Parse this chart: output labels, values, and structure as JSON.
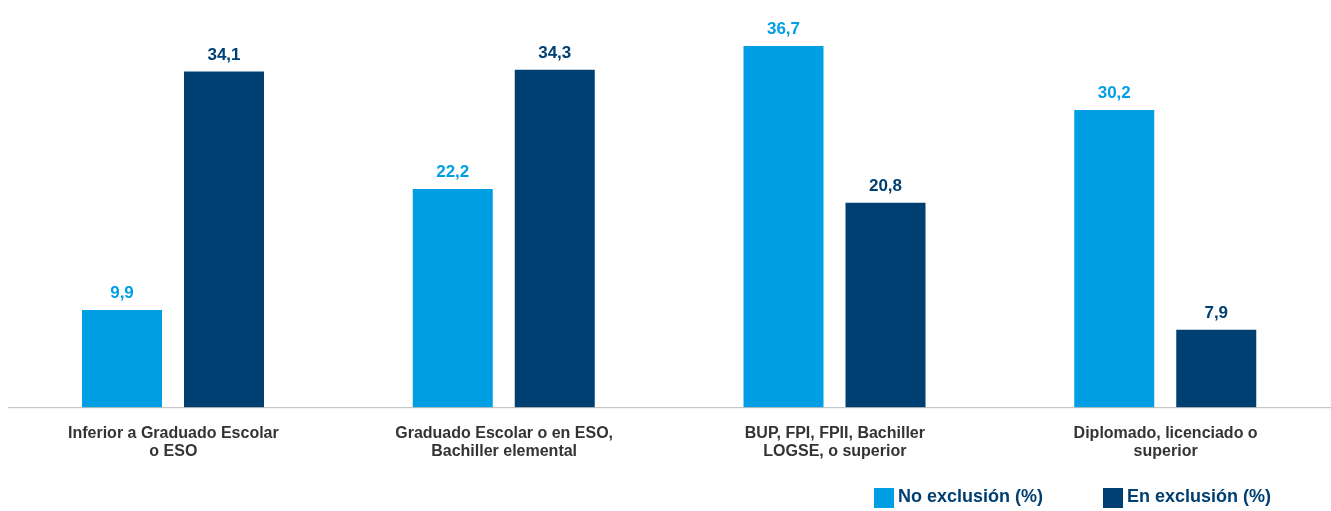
{
  "chart_data": {
    "type": "bar",
    "categories": [
      "Inferior a Graduado Escolar o ESO",
      "Graduado Escolar o en ESO, Bachiller elemental",
      "BUP, FPI, FPII, Bachiller LOGSE, o superior",
      "Diplomado, licenciado o superior"
    ],
    "series": [
      {
        "name": "No exclusión (%)",
        "color": "#009fe3",
        "values": [
          9.9,
          22.2,
          36.7,
          30.2
        ],
        "value_labels": [
          "9,9",
          "22,2",
          "36,7",
          "30,2"
        ]
      },
      {
        "name": "En exclusión (%)",
        "color": "#003f72",
        "values": [
          34.1,
          34.3,
          20.8,
          7.9
        ],
        "value_labels": [
          "34,1",
          "34,3",
          "20,8",
          "7,9"
        ]
      }
    ],
    "legend": "bottom right",
    "grid": false
  }
}
